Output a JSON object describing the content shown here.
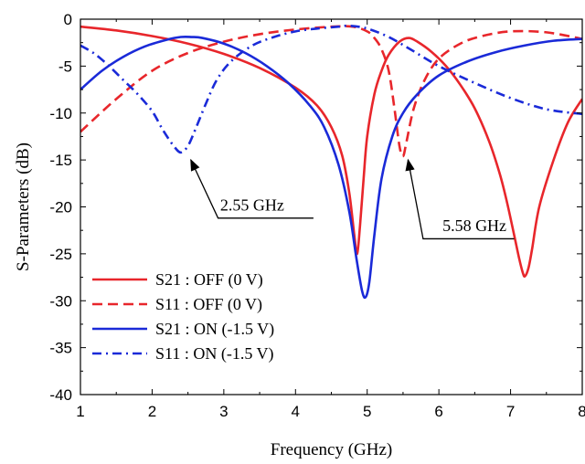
{
  "chart_data": {
    "type": "line",
    "title": "",
    "xlabel": "Frequency (GHz)",
    "ylabel": "S-Parameters (dB)",
    "xlim": [
      1,
      8
    ],
    "ylim": [
      -40,
      0
    ],
    "xticks": [
      1,
      2,
      3,
      4,
      5,
      6,
      7,
      8
    ],
    "yticks": [
      0,
      -5,
      -10,
      -15,
      -20,
      -25,
      -30,
      -35,
      -40
    ],
    "grid": false,
    "legend_position": "bottom-left",
    "series": [
      {
        "name": "S21 : OFF (0 V)",
        "color": "#e8262b",
        "dash": "solid",
        "x": [
          1.0,
          1.5,
          2.0,
          2.5,
          3.0,
          3.5,
          4.0,
          4.3,
          4.5,
          4.65,
          4.75,
          4.82,
          4.86,
          4.9,
          4.95,
          5.0,
          5.1,
          5.2,
          5.3,
          5.45,
          5.58,
          5.7,
          5.9,
          6.1,
          6.3,
          6.5,
          6.7,
          6.85,
          6.95,
          7.05,
          7.12,
          7.17,
          7.2,
          7.25,
          7.3,
          7.4,
          7.6,
          7.8,
          8.0
        ],
        "y": [
          -0.8,
          -1.2,
          -1.8,
          -2.6,
          -3.7,
          -5.2,
          -7.3,
          -9.2,
          -11.5,
          -14.5,
          -18.5,
          -23.0,
          -25.0,
          -22.0,
          -17.0,
          -12.5,
          -8.0,
          -5.5,
          -3.8,
          -2.4,
          -2.0,
          -2.4,
          -3.5,
          -5.0,
          -7.0,
          -9.5,
          -13.0,
          -16.5,
          -19.5,
          -23.0,
          -25.5,
          -27.0,
          -27.4,
          -26.5,
          -24.5,
          -20.0,
          -15.0,
          -11.0,
          -8.5
        ]
      },
      {
        "name": "S11 : OFF (0 V)",
        "color": "#e8262b",
        "dash": "dashed",
        "x": [
          1.0,
          1.5,
          2.0,
          2.5,
          3.0,
          3.5,
          4.0,
          4.5,
          4.8,
          5.0,
          5.1,
          5.2,
          5.3,
          5.38,
          5.45,
          5.5,
          5.55,
          5.65,
          5.8,
          6.0,
          6.3,
          6.6,
          7.0,
          7.5,
          8.0
        ],
        "y": [
          -12.0,
          -8.5,
          -5.5,
          -3.6,
          -2.4,
          -1.6,
          -1.1,
          -0.8,
          -0.8,
          -1.3,
          -2.0,
          -3.2,
          -5.5,
          -9.5,
          -13.5,
          -14.6,
          -13.0,
          -9.5,
          -6.5,
          -4.2,
          -2.6,
          -1.8,
          -1.3,
          -1.4,
          -2.1
        ]
      },
      {
        "name": "S21 : ON (-1.5 V)",
        "color": "#1a2ad8",
        "dash": "solid",
        "x": [
          1.0,
          1.3,
          1.6,
          1.9,
          2.2,
          2.4,
          2.55,
          2.7,
          3.0,
          3.3,
          3.6,
          3.9,
          4.2,
          4.4,
          4.6,
          4.75,
          4.85,
          4.93,
          4.98,
          5.03,
          5.1,
          5.2,
          5.35,
          5.5,
          5.7,
          6.0,
          6.4,
          6.8,
          7.2,
          7.6,
          8.0
        ],
        "y": [
          -7.5,
          -5.5,
          -4.0,
          -2.9,
          -2.2,
          -1.9,
          -1.9,
          -2.0,
          -2.6,
          -3.6,
          -5.0,
          -6.8,
          -9.2,
          -11.5,
          -15.5,
          -20.5,
          -25.5,
          -29.0,
          -29.6,
          -28.0,
          -23.0,
          -17.0,
          -12.5,
          -10.0,
          -8.0,
          -6.0,
          -4.5,
          -3.5,
          -2.8,
          -2.3,
          -2.1
        ]
      },
      {
        "name": "S11 : ON (-1.5 V)",
        "color": "#1a2ad8",
        "dash": "dashdot",
        "x": [
          1.0,
          1.2,
          1.4,
          1.6,
          1.8,
          2.0,
          2.15,
          2.3,
          2.4,
          2.5,
          2.6,
          2.75,
          2.9,
          3.1,
          3.4,
          3.7,
          4.0,
          4.3,
          4.6,
          4.75,
          5.0,
          5.3,
          5.6,
          6.0,
          6.5,
          7.0,
          7.5,
          8.0
        ],
        "y": [
          -2.8,
          -3.7,
          -5.0,
          -6.5,
          -8.0,
          -9.8,
          -11.8,
          -13.5,
          -14.2,
          -13.5,
          -11.8,
          -9.0,
          -6.5,
          -4.5,
          -2.8,
          -1.9,
          -1.3,
          -1.0,
          -0.8,
          -0.7,
          -1.0,
          -1.9,
          -3.2,
          -5.0,
          -6.8,
          -8.4,
          -9.6,
          -10.1
        ]
      }
    ],
    "annotations": [
      {
        "text": "2.55 GHz",
        "target_x": 2.52,
        "target_y": -14.6,
        "text_x": 2.95,
        "text_y": -20.4,
        "elbow_x": 2.92,
        "line_end_x": 4.25,
        "line_y": -21.2
      },
      {
        "text": "5.58 GHz",
        "target_x": 5.55,
        "target_y": -14.6,
        "text_x": 6.05,
        "text_y": -22.6,
        "elbow_x": 5.78,
        "line_end_x": 7.05,
        "line_y": -23.4
      }
    ]
  }
}
